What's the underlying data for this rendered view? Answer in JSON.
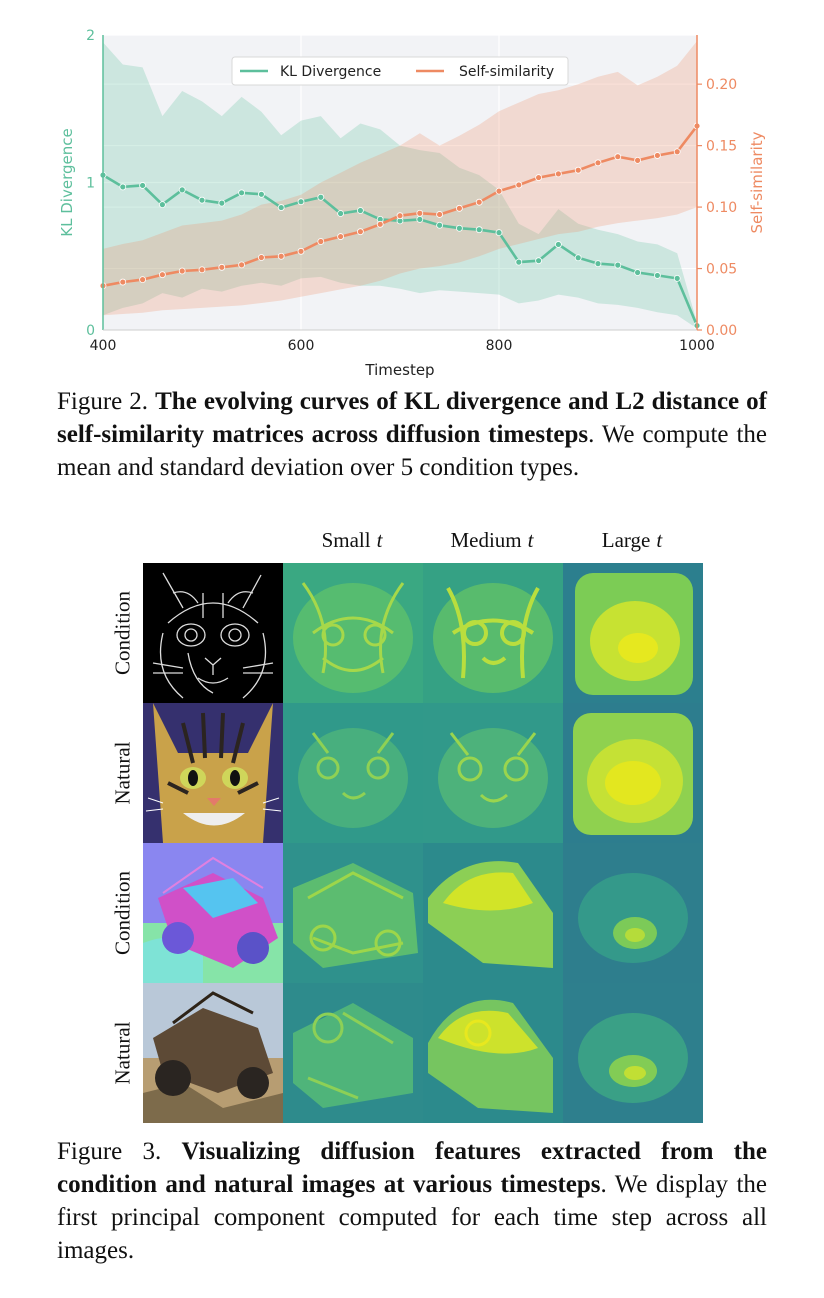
{
  "figure2": {
    "caption_prefix": "Figure 2.",
    "caption_bold": "The evolving curves of KL divergence and L2 distance of self-similarity matrices across diffusion timesteps",
    "caption_rest": ". We compute the mean and standard deviation over 5 condition types."
  },
  "chart_data": {
    "type": "line",
    "xlabel": "Timestep",
    "ylabel_left": "KL Divergence",
    "ylabel_right": "Self-similarity",
    "xlim": [
      400,
      1000
    ],
    "ylim_left": [
      0,
      2.0
    ],
    "ylim_right": [
      0,
      0.24
    ],
    "x_ticks": [
      "400",
      "600",
      "800",
      "1000"
    ],
    "y_ticks_left": [
      "0",
      "1",
      "2"
    ],
    "y_ticks_right": [
      "0.00",
      "0.05",
      "0.10",
      "0.15",
      "0.20"
    ],
    "grid": true,
    "legend_position": "top-center",
    "x": [
      400,
      420,
      440,
      460,
      480,
      500,
      520,
      540,
      560,
      580,
      600,
      620,
      640,
      660,
      680,
      700,
      720,
      740,
      760,
      780,
      800,
      820,
      840,
      860,
      880,
      900,
      920,
      940,
      960,
      980,
      1000
    ],
    "series": [
      {
        "name": "KL Divergence",
        "axis": "left",
        "color": "#5dbf9c",
        "values": [
          1.05,
          0.97,
          0.98,
          0.85,
          0.95,
          0.88,
          0.86,
          0.93,
          0.92,
          0.83,
          0.87,
          0.9,
          0.79,
          0.81,
          0.75,
          0.74,
          0.75,
          0.71,
          0.69,
          0.68,
          0.66,
          0.46,
          0.47,
          0.58,
          0.49,
          0.45,
          0.44,
          0.39,
          0.37,
          0.35,
          0.03
        ],
        "upper": [
          1.95,
          1.8,
          1.78,
          1.45,
          1.62,
          1.55,
          1.45,
          1.58,
          1.48,
          1.32,
          1.42,
          1.45,
          1.3,
          1.4,
          1.36,
          1.25,
          1.22,
          1.2,
          1.1,
          1.05,
          0.95,
          0.72,
          0.65,
          0.82,
          0.72,
          0.68,
          0.65,
          0.6,
          0.58,
          0.52,
          0.05
        ],
        "lower": [
          0.1,
          0.15,
          0.18,
          0.25,
          0.22,
          0.28,
          0.26,
          0.3,
          0.32,
          0.3,
          0.35,
          0.36,
          0.32,
          0.3,
          0.3,
          0.28,
          0.25,
          0.27,
          0.26,
          0.25,
          0.24,
          0.18,
          0.2,
          0.24,
          0.22,
          0.18,
          0.17,
          0.15,
          0.12,
          0.1,
          0.01
        ]
      },
      {
        "name": "Self-similarity",
        "axis": "right",
        "color": "#ee8a62",
        "values": [
          0.036,
          0.039,
          0.041,
          0.045,
          0.048,
          0.049,
          0.051,
          0.053,
          0.059,
          0.06,
          0.064,
          0.072,
          0.076,
          0.08,
          0.086,
          0.093,
          0.095,
          0.094,
          0.099,
          0.104,
          0.113,
          0.118,
          0.124,
          0.127,
          0.13,
          0.136,
          0.141,
          0.138,
          0.142,
          0.145,
          0.166
        ],
        "upper": [
          0.066,
          0.07,
          0.073,
          0.079,
          0.085,
          0.087,
          0.089,
          0.094,
          0.102,
          0.105,
          0.11,
          0.12,
          0.128,
          0.136,
          0.143,
          0.15,
          0.16,
          0.15,
          0.158,
          0.167,
          0.178,
          0.185,
          0.192,
          0.195,
          0.2,
          0.206,
          0.21,
          0.199,
          0.206,
          0.215,
          0.235
        ],
        "lower": [
          0.012,
          0.013,
          0.014,
          0.016,
          0.017,
          0.018,
          0.019,
          0.02,
          0.022,
          0.024,
          0.027,
          0.03,
          0.033,
          0.036,
          0.04,
          0.046,
          0.05,
          0.052,
          0.055,
          0.06,
          0.066,
          0.07,
          0.074,
          0.078,
          0.08,
          0.084,
          0.087,
          0.089,
          0.091,
          0.094,
          0.1
        ]
      }
    ]
  },
  "figure3": {
    "column_headers": [
      "Small",
      "Medium",
      "Large"
    ],
    "column_var": "t",
    "row_labels": [
      "Condition",
      "Natural",
      "Condition",
      "Natural"
    ],
    "caption_prefix": "Figure 3.",
    "caption_bold": "Visualizing diffusion features extracted from the condition and natural images at various timesteps",
    "caption_rest": ". We display the first principal component computed for each time step across all images."
  }
}
